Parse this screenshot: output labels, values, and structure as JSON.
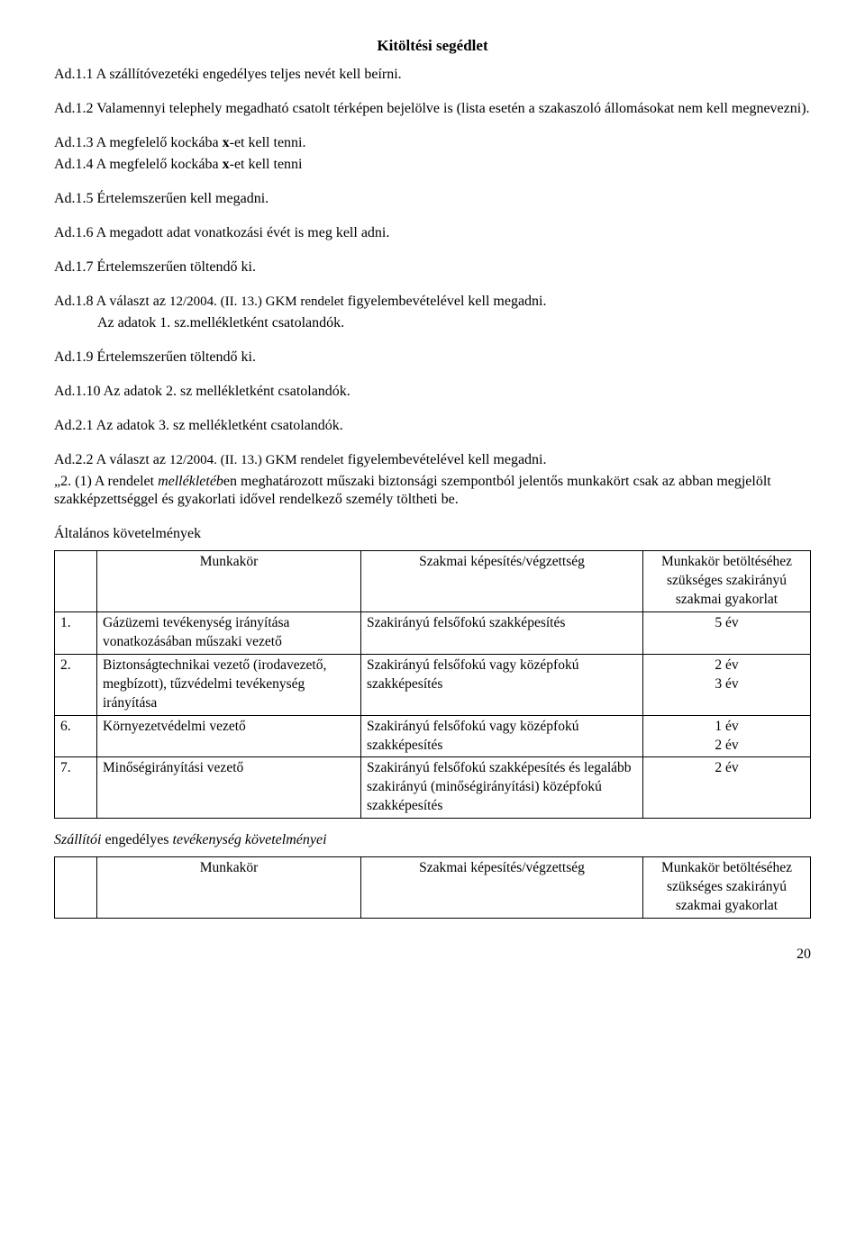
{
  "title": "Kitöltési segédlet",
  "paras": {
    "p1": "Ad.1.1 A szállítóvezetéki engedélyes teljes nevét kell beírni.",
    "p2": "Ad.1.2 Valamennyi telephely megadható csatolt térképen bejelölve is (lista esetén a szakaszoló állomásokat nem kell megnevezni).",
    "p3a": "Ad.1.3 A megfelelő kockába ",
    "p3b": "-et kell tenni.",
    "p4a": "Ad.1.4 A megfelelő kockába ",
    "p4b": "-et kell tenni",
    "p5": "Ad.1.5 Értelemszerűen kell megadni.",
    "p6": "Ad.1.6 A megadott adat vonatkozási évét is meg kell adni.",
    "p7": "Ad.1.7 Értelemszerűen töltendő ki.",
    "p8a": "Ad.1.8 A választ az ",
    "p8ref": "12/2004. (II. 13.) GKM rendelet",
    "p8b": " figyelembevételével kell megadni.",
    "p8c": "Az adatok 1. sz.mellékletként csatolandók.",
    "p9": "Ad.1.9 Értelemszerűen töltendő ki.",
    "p10": "Ad.1.10 Az adatok 2. sz mellékletként csatolandók.",
    "p21": "Ad.2.1 Az adatok 3. sz mellékletként csatolandók.",
    "p22a": "Ad.2.2 A választ az ",
    "p22ref": "12/2004. (II. 13.) GKM rendelet",
    "p22b": " figyelembevételével kell megadni.",
    "p22quote_a": "„2.",
    "p22quote_b": " (1) A rendelet ",
    "p22quote_c": "mellékletéb",
    "p22quote_d": "en meghatározott műszaki biztonsági szempontból jelentős munkakört csak az abban megjelölt szakképzettséggel és gyakorlati idővel rendelkező személy töltheti be.",
    "x": "x",
    "altkov": "Általános követelmények",
    "t1_head_b": "Munkakör",
    "t1_head_c": "Szakmai képesítés/végzettség",
    "t1_head_d": "Munkakör betöltéséhez szükséges szakirányú szakmai gyakorlat",
    "r1_n": "1.",
    "r1_b": "Gázüzemi tevékenység irányítása vonatkozásában műszaki vezető",
    "r1_c": "Szakirányú felsőfokú szakképesítés",
    "r1_d": "5 év",
    "r2_n": "2.",
    "r2_b": "Biztonságtechnikai vezető (irodavezető, megbízott), tűzvédelmi tevékenység irányítása",
    "r2_c": "Szakirányú felsőfokú vagy középfokú szakképesítés",
    "r2_d1": "2 év",
    "r2_d2": "3 év",
    "r6_n": "6.",
    "r6_b": "Környezetvédelmi vezető",
    "r6_c": "Szakirányú felsőfokú vagy középfokú szakképesítés",
    "r6_d1": "1 év",
    "r6_d2": "2 év",
    "r7_n": "7.",
    "r7_b": "Minőségirányítási vezető",
    "r7_c": "Szakirányú felsőfokú szakképesítés és legalább szakirányú (minőségirányítási) középfokú szakképesítés",
    "r7_d": "2 év",
    "szall_a": "Szállítói",
    "szall_b": " engedélyes ",
    "szall_c": "tevékenység követelményei",
    "t2_head_b": "Munkakör",
    "t2_head_c": "Szakmai képesítés/végzettség",
    "t2_head_d": "Munkakör betöltéséhez szükséges szakirányú szakmai gyakorlat",
    "pagenum": "20"
  }
}
